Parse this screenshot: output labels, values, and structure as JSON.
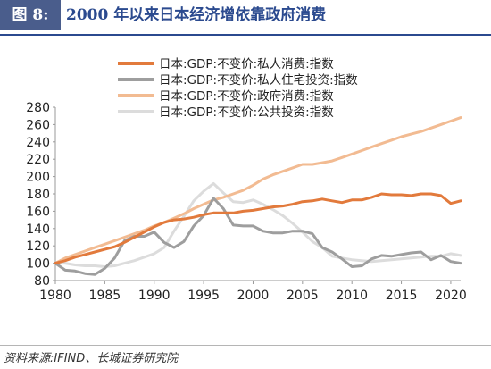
{
  "header": {
    "figure_label": "图 8:",
    "title": "2000 年以来日本经济增依靠政府消费"
  },
  "source": "资料来源:IFIND、长城证券研究院",
  "chart_data": {
    "type": "line",
    "title": "",
    "xlabel": "",
    "ylabel": "",
    "xlim": [
      1980,
      2021
    ],
    "ylim": [
      80,
      280
    ],
    "x_ticks": [
      1980,
      1985,
      1990,
      1995,
      2000,
      2005,
      2010,
      2015,
      2020
    ],
    "y_ticks": [
      80,
      100,
      120,
      140,
      160,
      180,
      200,
      220,
      240,
      260,
      280
    ],
    "grid": false,
    "legend_position": "top",
    "x": [
      1980,
      1981,
      1982,
      1983,
      1984,
      1985,
      1986,
      1987,
      1988,
      1989,
      1990,
      1991,
      1992,
      1993,
      1994,
      1995,
      1996,
      1997,
      1998,
      1999,
      2000,
      2001,
      2002,
      2003,
      2004,
      2005,
      2006,
      2007,
      2008,
      2009,
      2010,
      2011,
      2012,
      2013,
      2014,
      2015,
      2016,
      2017,
      2018,
      2019,
      2020,
      2021
    ],
    "series": [
      {
        "name": "日本:GDP:不变价:私人消费:指数",
        "color": "#e27a3c",
        "values": [
          100,
          103,
          107,
          110,
          113,
          116,
          119,
          124,
          130,
          136,
          142,
          147,
          150,
          151,
          153,
          156,
          158,
          158,
          158,
          160,
          161,
          163,
          165,
          166,
          168,
          171,
          172,
          174,
          172,
          170,
          173,
          173,
          176,
          180,
          179,
          179,
          178,
          180,
          180,
          178,
          169,
          172
        ]
      },
      {
        "name": "日本:GDP:不变价:私人住宅投资:指数",
        "color": "#9e9e9e",
        "values": [
          100,
          92,
          91,
          88,
          87,
          94,
          106,
          126,
          131,
          131,
          136,
          124,
          118,
          125,
          143,
          155,
          175,
          163,
          144,
          143,
          143,
          137,
          135,
          135,
          137,
          137,
          134,
          118,
          113,
          105,
          96,
          97,
          105,
          109,
          108,
          110,
          112,
          113,
          104,
          109,
          102,
          100
        ]
      },
      {
        "name": "日本:GDP:不变价:政府消费:指数",
        "color": "#f2bb92",
        "values": [
          100,
          106,
          110,
          114,
          118,
          122,
          126,
          130,
          134,
          138,
          143,
          147,
          152,
          157,
          163,
          168,
          173,
          176,
          180,
          184,
          190,
          197,
          202,
          206,
          210,
          214,
          214,
          216,
          218,
          222,
          226,
          230,
          234,
          238,
          242,
          246,
          249,
          252,
          256,
          260,
          264,
          268
        ]
      },
      {
        "name": "日本:GDP:不变价:公共投资:指数",
        "color": "#dcdcdc",
        "values": [
          100,
          100,
          98,
          97,
          97,
          96,
          97,
          100,
          103,
          107,
          111,
          118,
          137,
          154,
          172,
          183,
          192,
          181,
          171,
          170,
          173,
          168,
          162,
          155,
          146,
          136,
          125,
          118,
          108,
          106,
          104,
          103,
          102,
          103,
          104,
          105,
          106,
          107,
          108,
          108,
          111,
          109
        ]
      }
    ]
  }
}
